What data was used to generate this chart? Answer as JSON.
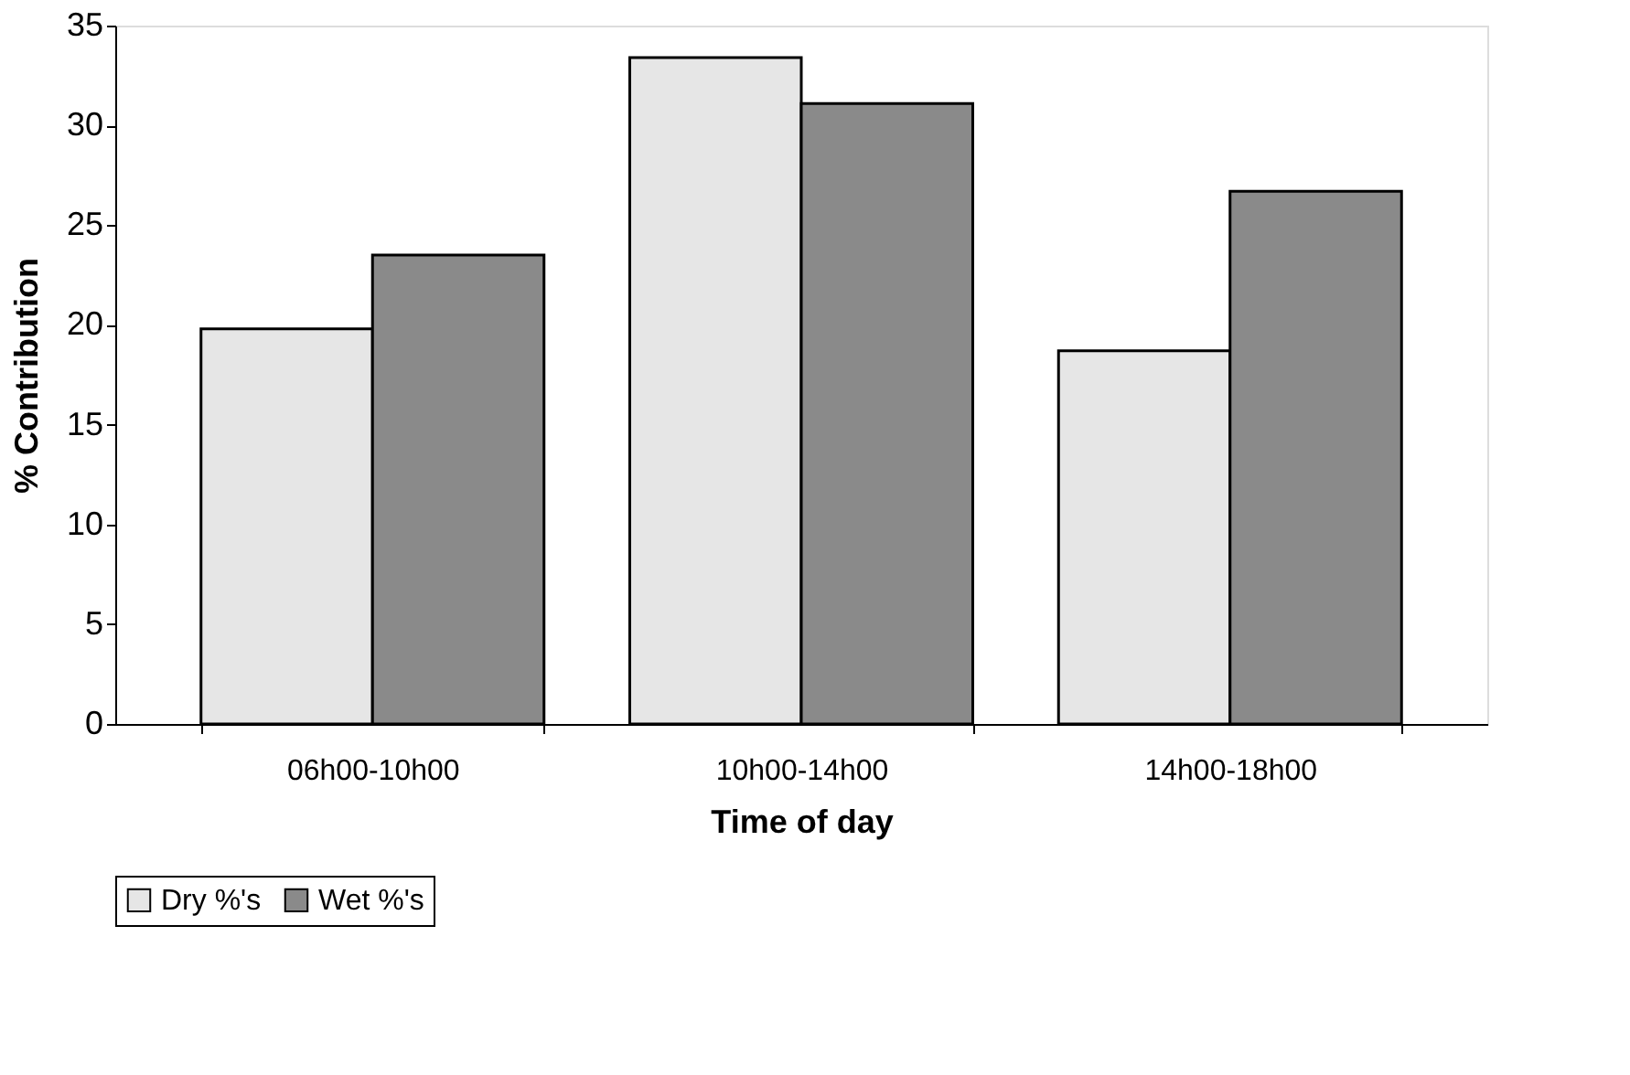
{
  "chart_data": {
    "type": "bar",
    "xlabel": "Time of day",
    "ylabel": "% Contribution",
    "categories": [
      "06h00-10h00",
      "10h00-14h00",
      "14h00-18h00"
    ],
    "series": [
      {
        "name": "Dry %'s",
        "color": "#e6e6e6",
        "values": [
          19.8,
          33.4,
          18.7
        ]
      },
      {
        "name": "Wet %'s",
        "color": "#8a8a8a",
        "values": [
          23.5,
          31.1,
          26.7
        ]
      }
    ],
    "ylim": [
      0,
      35
    ],
    "yticks": [
      0,
      5,
      10,
      15,
      20,
      25,
      30,
      35
    ],
    "grid": false,
    "legend": "bottom"
  }
}
